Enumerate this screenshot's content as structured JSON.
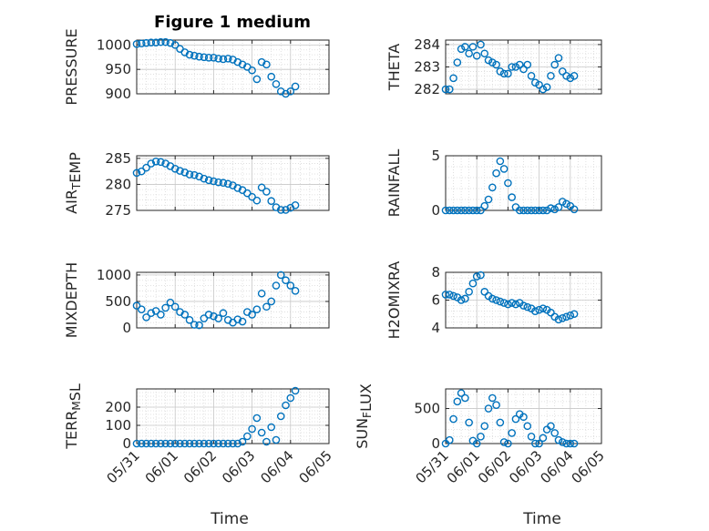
{
  "figure": {
    "title": "Figure 1 medium",
    "xlabel": "Time",
    "xticks": [
      "05/31",
      "06/01",
      "06/02",
      "06/03",
      "06/04",
      "06/05"
    ]
  },
  "chart_data": [
    {
      "type": "scatter",
      "ylabel": "PRESSURE",
      "ylim": [
        900,
        1010
      ],
      "yticks": [
        900,
        950,
        1000
      ],
      "grid": true,
      "x_dates": [
        "05/31",
        "05/31",
        "05/31",
        "05/31",
        "05/31",
        "05/31",
        "05/31",
        "05/31",
        "06/01",
        "06/01",
        "06/01",
        "06/01",
        "06/01",
        "06/01",
        "06/01",
        "06/01",
        "06/02",
        "06/02",
        "06/02",
        "06/02",
        "06/02",
        "06/02",
        "06/02",
        "06/02",
        "06/03",
        "06/03",
        "06/03",
        "06/03",
        "06/03",
        "06/03",
        "06/03",
        "06/03",
        "06/04",
        "06/04"
      ],
      "x_hours": [
        0,
        3,
        6,
        9,
        12,
        15,
        18,
        21,
        0,
        3,
        6,
        9,
        12,
        15,
        18,
        21,
        0,
        3,
        6,
        9,
        12,
        15,
        18,
        21,
        0,
        3,
        6,
        9,
        12,
        15,
        18,
        21,
        0,
        3
      ],
      "values": [
        1002,
        1003,
        1004,
        1005,
        1005,
        1006,
        1006,
        1004,
        1000,
        992,
        985,
        980,
        978,
        976,
        975,
        974,
        974,
        972,
        971,
        972,
        970,
        965,
        960,
        955,
        948,
        930,
        965,
        960,
        935,
        920,
        905,
        900,
        905,
        915
      ]
    },
    {
      "type": "scatter",
      "ylabel": "THETA",
      "ylim": [
        281.8,
        284.2
      ],
      "yticks": [
        282,
        283,
        284
      ],
      "grid": true,
      "x_dates": [
        "05/31",
        "05/31",
        "05/31",
        "05/31",
        "05/31",
        "05/31",
        "05/31",
        "05/31",
        "06/01",
        "06/01",
        "06/01",
        "06/01",
        "06/01",
        "06/01",
        "06/01",
        "06/01",
        "06/02",
        "06/02",
        "06/02",
        "06/02",
        "06/02",
        "06/02",
        "06/02",
        "06/02",
        "06/03",
        "06/03",
        "06/03",
        "06/03",
        "06/03",
        "06/03",
        "06/03",
        "06/03",
        "06/04",
        "06/04"
      ],
      "x_hours": [
        0,
        3,
        6,
        9,
        12,
        15,
        18,
        21,
        0,
        3,
        6,
        9,
        12,
        15,
        18,
        21,
        0,
        3,
        6,
        9,
        12,
        15,
        18,
        21,
        0,
        3,
        6,
        9,
        12,
        15,
        18,
        21,
        0,
        3
      ],
      "values": [
        282,
        282,
        282.5,
        283.2,
        283.8,
        283.9,
        283.6,
        283.9,
        283.5,
        284,
        283.6,
        283.3,
        283.2,
        283.1,
        282.8,
        282.7,
        282.7,
        283,
        283,
        283.1,
        282.9,
        283.1,
        282.6,
        282.3,
        282.2,
        282,
        282.1,
        282.6,
        283.1,
        283.4,
        282.8,
        282.6,
        282.5,
        282.6
      ]
    },
    {
      "type": "scatter",
      "ylabel": "AIR_TEMP",
      "ylim": [
        275,
        285.5
      ],
      "yticks": [
        275,
        280,
        285
      ],
      "grid": true,
      "x_dates": [
        "05/31",
        "05/31",
        "05/31",
        "05/31",
        "05/31",
        "05/31",
        "05/31",
        "05/31",
        "06/01",
        "06/01",
        "06/01",
        "06/01",
        "06/01",
        "06/01",
        "06/01",
        "06/01",
        "06/02",
        "06/02",
        "06/02",
        "06/02",
        "06/02",
        "06/02",
        "06/02",
        "06/02",
        "06/03",
        "06/03",
        "06/03",
        "06/03",
        "06/03",
        "06/03",
        "06/03",
        "06/03",
        "06/04",
        "06/04"
      ],
      "x_hours": [
        0,
        3,
        6,
        9,
        12,
        15,
        18,
        21,
        0,
        3,
        6,
        9,
        12,
        15,
        18,
        21,
        0,
        3,
        6,
        9,
        12,
        15,
        18,
        21,
        0,
        3,
        6,
        9,
        12,
        15,
        18,
        21,
        0,
        3
      ],
      "values": [
        282.2,
        282.5,
        283.2,
        284,
        284.4,
        284.3,
        284,
        283.5,
        283,
        282.6,
        282.3,
        281.9,
        281.8,
        281.5,
        281.1,
        280.8,
        280.6,
        280.4,
        280.3,
        280.1,
        279.8,
        279.3,
        278.9,
        278.3,
        277.6,
        276.9,
        279.4,
        278.6,
        276.8,
        275.6,
        275.1,
        275.1,
        275.5,
        276
      ]
    },
    {
      "type": "scatter",
      "ylabel": "RAINFALL",
      "ylim": [
        0,
        5
      ],
      "yticks": [
        0,
        5
      ],
      "grid": true,
      "x_dates": [
        "05/31",
        "05/31",
        "05/31",
        "05/31",
        "05/31",
        "05/31",
        "05/31",
        "05/31",
        "06/01",
        "06/01",
        "06/01",
        "06/01",
        "06/01",
        "06/01",
        "06/01",
        "06/01",
        "06/02",
        "06/02",
        "06/02",
        "06/02",
        "06/02",
        "06/02",
        "06/02",
        "06/02",
        "06/03",
        "06/03",
        "06/03",
        "06/03",
        "06/03",
        "06/03",
        "06/03",
        "06/03",
        "06/04",
        "06/04"
      ],
      "x_hours": [
        0,
        3,
        6,
        9,
        12,
        15,
        18,
        21,
        0,
        3,
        6,
        9,
        12,
        15,
        18,
        21,
        0,
        3,
        6,
        9,
        12,
        15,
        18,
        21,
        0,
        3,
        6,
        9,
        12,
        15,
        18,
        21,
        0,
        3
      ],
      "values": [
        0,
        0,
        0,
        0,
        0,
        0,
        0,
        0,
        0,
        0,
        0.4,
        1,
        2.1,
        3.4,
        4.5,
        3.8,
        2.5,
        1.2,
        0.3,
        0,
        0,
        0,
        0,
        0,
        0,
        0,
        0,
        0.2,
        0.1,
        0.3,
        0.8,
        0.6,
        0.4,
        0.1
      ]
    },
    {
      "type": "scatter",
      "ylabel": "MIXDEPTH",
      "ylim": [
        0,
        1050
      ],
      "yticks": [
        0,
        500,
        1000
      ],
      "grid": true,
      "x_dates": [
        "05/31",
        "05/31",
        "05/31",
        "05/31",
        "05/31",
        "05/31",
        "05/31",
        "05/31",
        "06/01",
        "06/01",
        "06/01",
        "06/01",
        "06/01",
        "06/01",
        "06/01",
        "06/01",
        "06/02",
        "06/02",
        "06/02",
        "06/02",
        "06/02",
        "06/02",
        "06/02",
        "06/02",
        "06/03",
        "06/03",
        "06/03",
        "06/03",
        "06/03",
        "06/03",
        "06/03",
        "06/03",
        "06/04",
        "06/04"
      ],
      "x_hours": [
        0,
        3,
        6,
        9,
        12,
        15,
        18,
        21,
        0,
        3,
        6,
        9,
        12,
        15,
        18,
        21,
        0,
        3,
        6,
        9,
        12,
        15,
        18,
        21,
        0,
        3,
        6,
        9,
        12,
        15,
        18,
        21,
        0,
        3
      ],
      "values": [
        420,
        350,
        200,
        280,
        320,
        250,
        380,
        480,
        400,
        300,
        250,
        150,
        60,
        50,
        180,
        250,
        220,
        180,
        280,
        150,
        100,
        160,
        120,
        300,
        250,
        350,
        650,
        400,
        500,
        800,
        1000,
        900,
        800,
        700
      ]
    },
    {
      "type": "scatter",
      "ylabel": "H2OMIXRA",
      "ylim": [
        4,
        8
      ],
      "yticks": [
        4,
        6,
        8
      ],
      "grid": true,
      "x_dates": [
        "05/31",
        "05/31",
        "05/31",
        "05/31",
        "05/31",
        "05/31",
        "05/31",
        "05/31",
        "06/01",
        "06/01",
        "06/01",
        "06/01",
        "06/01",
        "06/01",
        "06/01",
        "06/01",
        "06/02",
        "06/02",
        "06/02",
        "06/02",
        "06/02",
        "06/02",
        "06/02",
        "06/02",
        "06/03",
        "06/03",
        "06/03",
        "06/03",
        "06/03",
        "06/03",
        "06/03",
        "06/03",
        "06/04",
        "06/04"
      ],
      "x_hours": [
        0,
        3,
        6,
        9,
        12,
        15,
        18,
        21,
        0,
        3,
        6,
        9,
        12,
        15,
        18,
        21,
        0,
        3,
        6,
        9,
        12,
        15,
        18,
        21,
        0,
        3,
        6,
        9,
        12,
        15,
        18,
        21,
        0,
        3
      ],
      "values": [
        6.4,
        6.4,
        6.3,
        6.2,
        6,
        6.1,
        6.6,
        7.2,
        7.7,
        7.8,
        6.6,
        6.3,
        6.1,
        6,
        5.9,
        5.8,
        5.7,
        5.8,
        5.7,
        5.8,
        5.6,
        5.5,
        5.4,
        5.2,
        5.3,
        5.4,
        5.3,
        5.1,
        4.8,
        4.6,
        4.7,
        4.8,
        4.9,
        5
      ]
    },
    {
      "type": "scatter",
      "ylabel": "TERR_MSL",
      "ylim": [
        0,
        300
      ],
      "yticks": [
        0,
        100,
        200
      ],
      "grid": true,
      "x_dates": [
        "05/31",
        "05/31",
        "05/31",
        "05/31",
        "05/31",
        "05/31",
        "05/31",
        "05/31",
        "06/01",
        "06/01",
        "06/01",
        "06/01",
        "06/01",
        "06/01",
        "06/01",
        "06/01",
        "06/02",
        "06/02",
        "06/02",
        "06/02",
        "06/02",
        "06/02",
        "06/02",
        "06/02",
        "06/03",
        "06/03",
        "06/03",
        "06/03",
        "06/03",
        "06/03",
        "06/03",
        "06/03",
        "06/04",
        "06/04"
      ],
      "x_hours": [
        0,
        3,
        6,
        9,
        12,
        15,
        18,
        21,
        0,
        3,
        6,
        9,
        12,
        15,
        18,
        21,
        0,
        3,
        6,
        9,
        12,
        15,
        18,
        21,
        0,
        3,
        6,
        9,
        12,
        15,
        18,
        21,
        0,
        3
      ],
      "values": [
        0,
        0,
        0,
        0,
        0,
        0,
        0,
        0,
        0,
        0,
        0,
        0,
        0,
        0,
        0,
        0,
        0,
        0,
        0,
        0,
        0,
        0,
        10,
        40,
        80,
        140,
        60,
        10,
        90,
        20,
        150,
        210,
        250,
        290
      ]
    },
    {
      "type": "scatter",
      "ylabel": "SUN_FLUX",
      "ylim": [
        0,
        780
      ],
      "yticks": [
        0,
        500
      ],
      "grid": true,
      "x_dates": [
        "05/31",
        "05/31",
        "05/31",
        "05/31",
        "05/31",
        "05/31",
        "05/31",
        "05/31",
        "06/01",
        "06/01",
        "06/01",
        "06/01",
        "06/01",
        "06/01",
        "06/01",
        "06/01",
        "06/02",
        "06/02",
        "06/02",
        "06/02",
        "06/02",
        "06/02",
        "06/02",
        "06/02",
        "06/03",
        "06/03",
        "06/03",
        "06/03",
        "06/03",
        "06/03",
        "06/03",
        "06/03",
        "06/04",
        "06/04"
      ],
      "x_hours": [
        0,
        3,
        6,
        9,
        12,
        15,
        18,
        21,
        0,
        3,
        6,
        9,
        12,
        15,
        18,
        21,
        0,
        3,
        6,
        9,
        12,
        15,
        18,
        21,
        0,
        3,
        6,
        9,
        12,
        15,
        18,
        21,
        0,
        3
      ],
      "values": [
        0,
        50,
        350,
        600,
        720,
        650,
        300,
        40,
        0,
        100,
        250,
        500,
        650,
        550,
        300,
        20,
        0,
        150,
        350,
        420,
        380,
        250,
        100,
        0,
        0,
        80,
        200,
        250,
        150,
        50,
        20,
        0,
        0,
        0
      ]
    }
  ]
}
